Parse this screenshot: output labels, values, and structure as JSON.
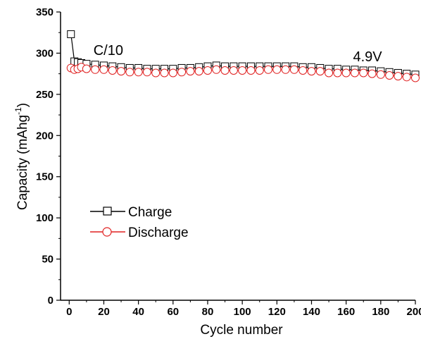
{
  "chart_data": {
    "type": "scatter",
    "xlabel": "Cycle number",
    "ylabel": "Capacity (mAhg",
    "ylabel_sup": "-1",
    "ylabel_close": ")",
    "xlim": [
      -5,
      200
    ],
    "ylim": [
      0,
      350
    ],
    "x_ticks": [
      0,
      20,
      40,
      60,
      80,
      100,
      120,
      140,
      160,
      180,
      200
    ],
    "y_ticks": [
      0,
      50,
      100,
      150,
      200,
      250,
      300,
      350
    ],
    "grid": false,
    "legend_position": "bottom-left",
    "annotations": [
      {
        "text": "C/10",
        "x": 14,
        "y": 298
      },
      {
        "text": "4.9V",
        "x": 164,
        "y": 290
      }
    ],
    "series": [
      {
        "name": "Charge",
        "color": "#000000",
        "marker": "square",
        "x": [
          1,
          3,
          5,
          7,
          10,
          15,
          20,
          25,
          30,
          35,
          40,
          45,
          50,
          55,
          60,
          65,
          70,
          75,
          80,
          85,
          90,
          95,
          100,
          105,
          110,
          115,
          120,
          125,
          130,
          135,
          140,
          145,
          150,
          155,
          160,
          165,
          170,
          175,
          180,
          185,
          190,
          195,
          200
        ],
        "y": [
          323,
          290,
          289,
          288,
          287,
          286,
          285,
          284,
          283,
          282,
          282,
          281,
          281,
          281,
          281,
          282,
          282,
          283,
          284,
          285,
          284,
          284,
          284,
          284,
          284,
          284,
          284,
          284,
          284,
          283,
          283,
          282,
          281,
          281,
          280,
          280,
          279,
          279,
          278,
          277,
          276,
          275,
          274
        ]
      },
      {
        "name": "Discharge",
        "color": "#e02020",
        "marker": "circle",
        "x": [
          1,
          3,
          5,
          7,
          10,
          15,
          20,
          25,
          30,
          35,
          40,
          45,
          50,
          55,
          60,
          65,
          70,
          75,
          80,
          85,
          90,
          95,
          100,
          105,
          110,
          115,
          120,
          125,
          130,
          135,
          140,
          145,
          150,
          155,
          160,
          165,
          170,
          175,
          180,
          185,
          190,
          195,
          200
        ],
        "y": [
          282,
          280,
          281,
          283,
          281,
          280,
          280,
          279,
          278,
          277,
          277,
          277,
          276,
          276,
          276,
          277,
          278,
          278,
          279,
          280,
          279,
          279,
          279,
          279,
          279,
          280,
          280,
          280,
          280,
          279,
          278,
          278,
          276,
          276,
          276,
          276,
          276,
          275,
          274,
          273,
          272,
          271,
          270
        ]
      }
    ]
  }
}
